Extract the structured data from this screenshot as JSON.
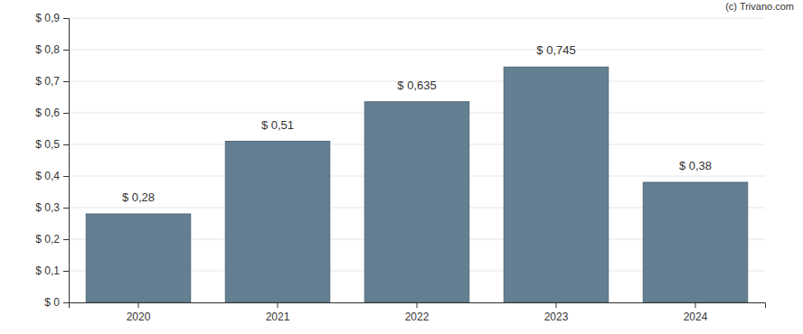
{
  "chart_data": {
    "type": "bar",
    "annotation": "(c) Trivano.com",
    "categories": [
      "2020",
      "2021",
      "2022",
      "2023",
      "2024"
    ],
    "values": [
      0.28,
      0.51,
      0.635,
      0.745,
      0.38
    ],
    "value_labels": [
      "$ 0,28",
      "$ 0,51",
      "$ 0,635",
      "$ 0,745",
      "$ 0,38"
    ],
    "data_labels": true,
    "color": "#647f92",
    "ylim": [
      0,
      0.9
    ],
    "yticks": [
      {
        "value": 0,
        "label": "$ 0"
      },
      {
        "value": 0.1,
        "label": "$ 0,1"
      },
      {
        "value": 0.2,
        "label": "$ 0,2"
      },
      {
        "value": 0.3,
        "label": "$ 0,3"
      },
      {
        "value": 0.4,
        "label": "$ 0,4"
      },
      {
        "value": 0.5,
        "label": "$ 0,5"
      },
      {
        "value": 0.6,
        "label": "$ 0,6"
      },
      {
        "value": 0.7,
        "label": "$ 0,7"
      },
      {
        "value": 0.8,
        "label": "$ 0,8"
      },
      {
        "value": 0.9,
        "label": "$ 0,9"
      }
    ],
    "grid": true
  }
}
